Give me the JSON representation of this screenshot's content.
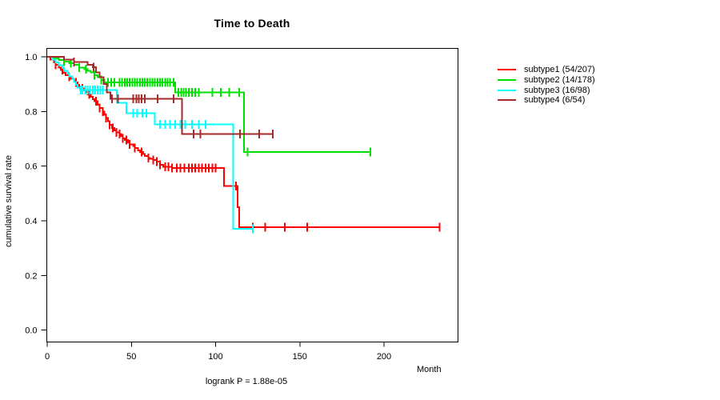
{
  "page": {
    "background": "#ffffff"
  },
  "chart_data": {
    "type": "line",
    "subtype": "kaplan-meier-step-survival",
    "title": "Time to Death",
    "xlabel": "Month",
    "ylabel": "cumulative survival rate",
    "annotation": "logrank P = 1.88e-05",
    "grid": false,
    "legend_position": "right",
    "xlim": [
      0,
      244
    ],
    "ylim": [
      0.0,
      1.04
    ],
    "x_ticks": [
      0,
      50,
      100,
      150,
      200
    ],
    "x_tick_labels": [
      "0",
      "50",
      "100",
      "150",
      "200"
    ],
    "y_ticks": [
      1.0,
      0.8,
      0.6,
      0.4,
      0.2,
      0.0
    ],
    "y_tick_labels": [
      "1.0",
      "0.8",
      "0.6",
      "0.4",
      "0.2",
      "0.0"
    ],
    "axis_color": "#000000",
    "series": [
      {
        "name": "subtype1",
        "legend_label": "subtype1 (54/207)",
        "color": "#ff0000",
        "steps": [
          [
            0,
            1.0
          ],
          [
            2,
            0.99
          ],
          [
            4,
            0.98
          ],
          [
            5,
            0.971
          ],
          [
            7,
            0.961
          ],
          [
            8,
            0.951
          ],
          [
            10,
            0.942
          ],
          [
            11,
            0.932
          ],
          [
            13,
            0.927
          ],
          [
            14,
            0.92
          ],
          [
            16,
            0.913
          ],
          [
            17,
            0.906
          ],
          [
            18,
            0.898
          ],
          [
            19,
            0.891
          ],
          [
            21,
            0.884
          ],
          [
            22,
            0.877
          ],
          [
            23,
            0.87
          ],
          [
            24,
            0.862
          ],
          [
            26,
            0.854
          ],
          [
            27,
            0.845
          ],
          [
            28,
            0.837
          ],
          [
            30,
            0.825
          ],
          [
            31,
            0.813
          ],
          [
            33,
            0.8
          ],
          [
            34,
            0.788
          ],
          [
            35,
            0.776
          ],
          [
            36,
            0.764
          ],
          [
            37,
            0.751
          ],
          [
            38.5,
            0.739
          ],
          [
            40,
            0.731
          ],
          [
            41,
            0.724
          ],
          [
            43,
            0.717
          ],
          [
            44,
            0.71
          ],
          [
            45,
            0.702
          ],
          [
            46,
            0.695
          ],
          [
            48,
            0.687
          ],
          [
            49,
            0.68
          ],
          [
            51,
            0.673
          ],
          [
            52,
            0.666
          ],
          [
            54,
            0.658
          ],
          [
            55,
            0.651
          ],
          [
            57,
            0.644
          ],
          [
            58,
            0.637
          ],
          [
            60,
            0.63
          ],
          [
            61,
            0.627
          ],
          [
            63,
            0.622
          ],
          [
            65,
            0.617
          ],
          [
            67,
            0.605
          ],
          [
            69,
            0.598
          ],
          [
            74,
            0.593
          ],
          [
            105,
            0.527
          ],
          [
            113,
            0.45
          ],
          [
            114,
            0.376
          ],
          [
            233,
            0.376
          ]
        ],
        "censor_months": [
          5,
          9,
          13,
          17,
          21,
          25,
          29,
          31,
          33,
          35,
          37,
          39,
          41,
          43,
          45,
          47,
          49,
          52,
          56,
          60,
          63,
          65,
          67,
          70,
          72,
          74,
          77,
          79,
          81.5,
          84,
          86,
          88,
          90,
          92,
          94,
          96,
          98,
          100,
          112,
          122,
          129.5,
          141,
          154.5,
          233
        ]
      },
      {
        "name": "subtype2",
        "legend_label": "subtype2 (14/178)",
        "color": "#00e000",
        "steps": [
          [
            0,
            1.0
          ],
          [
            4,
            0.994
          ],
          [
            7,
            0.989
          ],
          [
            10,
            0.983
          ],
          [
            13,
            0.977
          ],
          [
            16,
            0.971
          ],
          [
            19,
            0.96
          ],
          [
            22,
            0.955
          ],
          [
            24,
            0.949
          ],
          [
            26,
            0.943
          ],
          [
            28,
            0.932
          ],
          [
            30,
            0.926
          ],
          [
            32,
            0.915
          ],
          [
            34,
            0.906
          ],
          [
            76,
            0.869
          ],
          [
            116.8,
            0.651
          ],
          [
            192,
            0.651
          ]
        ],
        "censor_months": [
          10,
          14,
          19,
          23,
          28,
          32,
          36,
          38,
          40,
          43,
          44.5,
          46,
          47.5,
          49,
          50.5,
          52,
          53.5,
          55,
          56.5,
          58,
          59.5,
          61,
          62.5,
          64,
          65.5,
          67,
          68.5,
          70,
          71.5,
          73,
          75,
          78,
          79.5,
          81,
          82.5,
          84,
          86,
          88,
          90,
          98,
          103,
          108,
          114,
          119,
          192
        ]
      },
      {
        "name": "subtype3",
        "legend_label": "subtype3 (16/98)",
        "color": "#00ffff",
        "steps": [
          [
            0,
            1.0
          ],
          [
            3,
            0.99
          ],
          [
            5,
            0.98
          ],
          [
            7,
            0.969
          ],
          [
            9,
            0.959
          ],
          [
            10,
            0.949
          ],
          [
            12,
            0.938
          ],
          [
            13,
            0.928
          ],
          [
            15,
            0.918
          ],
          [
            16,
            0.908
          ],
          [
            17,
            0.898
          ],
          [
            18,
            0.888
          ],
          [
            19.5,
            0.879
          ],
          [
            41.3,
            0.832
          ],
          [
            47,
            0.793
          ],
          [
            64,
            0.752
          ],
          [
            110.5,
            0.37
          ],
          [
            122,
            0.37
          ]
        ],
        "censor_months": [
          20,
          21,
          22.5,
          24,
          25.5,
          27,
          28.5,
          30,
          31.5,
          33,
          51,
          53.5,
          56.5,
          59,
          67,
          70,
          73,
          76,
          79,
          82,
          86,
          90,
          94,
          122
        ]
      },
      {
        "name": "subtype4",
        "legend_label": "subtype4 (6/54)",
        "color": "#a52a2a",
        "steps": [
          [
            0,
            1.0
          ],
          [
            10,
            0.99
          ],
          [
            16,
            0.981
          ],
          [
            24,
            0.971
          ],
          [
            27,
            0.962
          ],
          [
            29,
            0.943
          ],
          [
            31,
            0.925
          ],
          [
            33.5,
            0.9
          ],
          [
            35.5,
            0.87
          ],
          [
            37.5,
            0.846
          ],
          [
            80,
            0.717
          ],
          [
            134,
            0.717
          ]
        ],
        "censor_months": [
          16,
          27.5,
          38.5,
          42,
          51,
          53,
          54.5,
          56,
          58,
          65.5,
          75,
          87,
          91,
          114.5,
          126,
          134
        ]
      }
    ]
  }
}
